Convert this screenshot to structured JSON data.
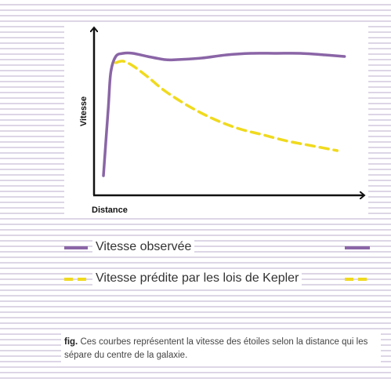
{
  "chart_data": {
    "type": "line",
    "title": "",
    "xlabel": "Distance",
    "ylabel": "Vitesse",
    "xlim": [
      0,
      100
    ],
    "ylim": [
      0,
      100
    ],
    "grid": false,
    "series": [
      {
        "name": "Vitesse observée",
        "style": "solid",
        "color": "#8a65a6",
        "x": [
          0,
          2,
          3,
          5,
          8,
          12,
          18,
          25,
          30,
          40,
          50,
          60,
          70,
          80,
          90,
          98
        ],
        "y": [
          6,
          50,
          72,
          82,
          84,
          84,
          82,
          80,
          80,
          81,
          83,
          84,
          84,
          84,
          83,
          82
        ]
      },
      {
        "name": "Vitesse prédite par les lois de Kepler",
        "style": "dashed",
        "color": "#f0da1e",
        "x": [
          5,
          8,
          12,
          18,
          25,
          35,
          45,
          55,
          65,
          75,
          85,
          95
        ],
        "y": [
          78,
          79,
          76,
          69,
          60,
          50,
          42,
          36,
          32,
          28,
          25,
          22
        ]
      }
    ]
  },
  "legend": {
    "observed_label": "Vitesse observée",
    "predicted_label": "Vitesse prédite par les lois de Kepler"
  },
  "caption": {
    "prefix": "fig.",
    "text": " Ces courbes représentent la vitesse des étoiles selon la distance qui les sépare du centre de la galaxie."
  },
  "colors": {
    "observed": "#8a65a6",
    "predicted": "#f0da1e",
    "axis": "#111111"
  }
}
